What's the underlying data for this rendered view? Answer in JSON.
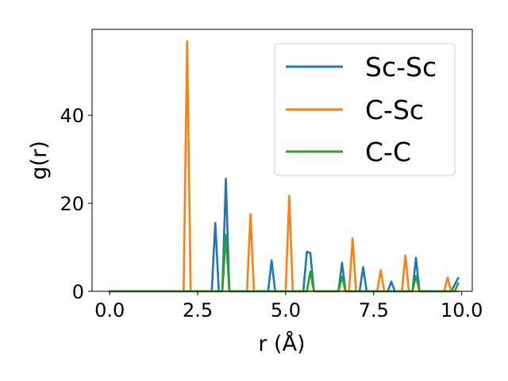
{
  "chart_data": {
    "type": "line",
    "xlabel": "r (Å)",
    "ylabel": "g(r)",
    "xlim": [
      -0.5,
      10.3
    ],
    "ylim": [
      0,
      59.5
    ],
    "xticks": [
      0.0,
      2.5,
      5.0,
      7.5,
      10.0
    ],
    "xtick_labels": [
      "0.0",
      "2.5",
      "5.0",
      "7.5",
      "10.0"
    ],
    "yticks": [
      0,
      20,
      40
    ],
    "ytick_labels": [
      "0",
      "20",
      "40"
    ],
    "grid": false,
    "legend_position": "top-right",
    "series": [
      {
        "name": "Sc-Sc",
        "color": "#1f77b4",
        "x": [
          0.0,
          2.9,
          3.0,
          3.1,
          3.2,
          3.3,
          3.4,
          4.5,
          4.6,
          4.7,
          5.5,
          5.6,
          5.7,
          5.8,
          6.5,
          6.6,
          6.7,
          7.1,
          7.2,
          7.3,
          7.9,
          8.0,
          8.1,
          8.6,
          8.7,
          8.8,
          9.7,
          9.8,
          9.9
        ],
        "y": [
          0,
          0,
          15.5,
          0,
          0,
          25.6,
          0,
          0,
          7.0,
          0,
          0,
          9.0,
          8.7,
          0,
          0,
          6.5,
          0,
          0,
          5.5,
          0,
          0,
          2.2,
          0,
          0,
          7.6,
          0,
          0,
          1.5,
          3.0
        ]
      },
      {
        "name": "C-Sc",
        "color": "#ff7f0e",
        "x": [
          0.0,
          2.1,
          2.2,
          2.3,
          3.9,
          4.0,
          4.1,
          5.0,
          5.1,
          5.2,
          6.8,
          6.9,
          7.0,
          7.6,
          7.7,
          7.8,
          8.3,
          8.4,
          8.5,
          9.5,
          9.6,
          9.7,
          9.9
        ],
        "y": [
          0,
          0,
          56.8,
          0,
          0,
          17.5,
          0,
          0,
          21.7,
          0,
          0,
          12.0,
          0,
          0,
          4.8,
          0,
          0,
          8.1,
          0,
          0,
          3.1,
          0,
          0
        ]
      },
      {
        "name": "C-C",
        "color": "#2ca02c",
        "x": [
          0.0,
          3.2,
          3.3,
          3.4,
          5.6,
          5.7,
          5.8,
          6.5,
          6.6,
          6.7,
          8.6,
          8.7,
          8.8,
          9.8,
          9.9
        ],
        "y": [
          0,
          0,
          12.8,
          0,
          0,
          4.5,
          0,
          0,
          3.3,
          0,
          0,
          3.5,
          0,
          0,
          1.8
        ]
      }
    ]
  }
}
